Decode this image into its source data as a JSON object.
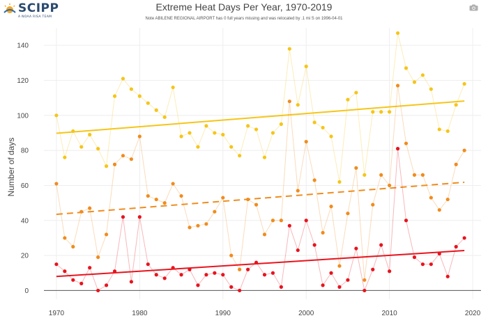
{
  "header": {
    "logo_text": "SCIPP",
    "logo_tagline": "A NOAA RISA TEAM",
    "title": "Extreme Heat Days Per Year, 1970-2019",
    "note": "Note ABILENE REGIONAL AIRPORT has 0 full years missing and was relocated by .1 mi S on 1996-04-01"
  },
  "icons": {
    "logo": "sun-logo-icon",
    "camera": "camera-icon"
  },
  "chart_data": {
    "type": "line",
    "title": "Extreme Heat Days Per Year, 1970-2019",
    "xlabel": "",
    "ylabel": "Number of days",
    "xlim": [
      1968.5,
      2021
    ],
    "ylim": [
      -5,
      150
    ],
    "x_ticks": [
      1970,
      1980,
      1990,
      2000,
      2010,
      2020
    ],
    "y_ticks": [
      0,
      20,
      40,
      60,
      80,
      100,
      120,
      140
    ],
    "grid": true,
    "legend": "none",
    "x": [
      1970,
      1971,
      1972,
      1973,
      1974,
      1975,
      1976,
      1977,
      1978,
      1979,
      1980,
      1981,
      1982,
      1983,
      1984,
      1985,
      1986,
      1987,
      1988,
      1989,
      1990,
      1991,
      1992,
      1993,
      1994,
      1995,
      1996,
      1997,
      1998,
      1999,
      2000,
      2001,
      2002,
      2003,
      2004,
      2005,
      2006,
      2007,
      2008,
      2009,
      2010,
      2011,
      2012,
      2013,
      2014,
      2015,
      2016,
      2017,
      2018,
      2019
    ],
    "series": [
      {
        "color": "#f5c518",
        "values": [
          100,
          76,
          91,
          82,
          89,
          81,
          71,
          111,
          121,
          115,
          111,
          107,
          103,
          99,
          116,
          88,
          90,
          82,
          94,
          90,
          89,
          82,
          77,
          94,
          92,
          76,
          90,
          95,
          138,
          106,
          128,
          96,
          93,
          88,
          62,
          109,
          113,
          66,
          102,
          102,
          102,
          147,
          127,
          119,
          123,
          115,
          92,
          91,
          106,
          118
        ],
        "trend": [
          89.8,
          108.2
        ],
        "trend_style": "solid"
      },
      {
        "color": "#f08c1e",
        "values": [
          61,
          30,
          25,
          45,
          47,
          19,
          32,
          72,
          77,
          75,
          88,
          54,
          52,
          50,
          61,
          54,
          36,
          37,
          38,
          45,
          53,
          20,
          12,
          52,
          49,
          32,
          40,
          40,
          108,
          57,
          85,
          63,
          33,
          48,
          14,
          44,
          70,
          6,
          49,
          66,
          60,
          117,
          84,
          66,
          66,
          53,
          46,
          52,
          72,
          80
        ],
        "trend": [
          43.5,
          61.8
        ],
        "trend_style": "dashed"
      },
      {
        "color": "#e8141e",
        "values": [
          15,
          11,
          6,
          4,
          13,
          0,
          3,
          11,
          42,
          5,
          42,
          15,
          9,
          7,
          13,
          9,
          12,
          3,
          9,
          10,
          9,
          2,
          0,
          12,
          16,
          9,
          10,
          2,
          37,
          23,
          40,
          26,
          3,
          10,
          2,
          6,
          24,
          0,
          12,
          26,
          11,
          81,
          40,
          19,
          15,
          15,
          21,
          8,
          25,
          30
        ],
        "trend": [
          8.0,
          22.8
        ],
        "trend_style": "solid"
      }
    ]
  }
}
